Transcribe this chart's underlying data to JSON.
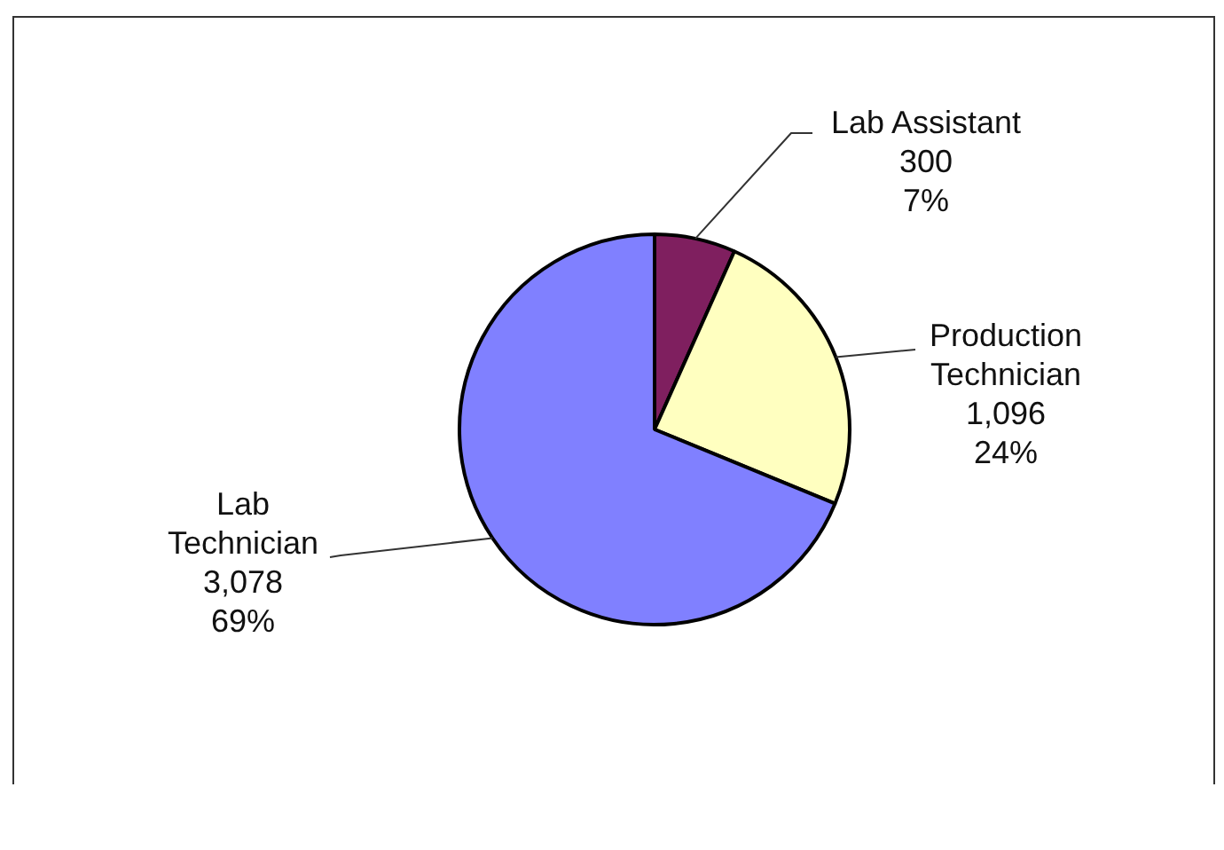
{
  "chart_data": {
    "type": "pie",
    "categories": [
      "Lab Assistant",
      "Production Technician",
      "Lab Technician"
    ],
    "values": [
      300,
      1096,
      3078
    ],
    "colors": [
      "#7f1f5f",
      "#ffffc0",
      "#8080ff"
    ],
    "value_labels": [
      "300\n7%",
      "1,096\n24%",
      "3,078\n69%"
    ],
    "legend": false
  }
}
